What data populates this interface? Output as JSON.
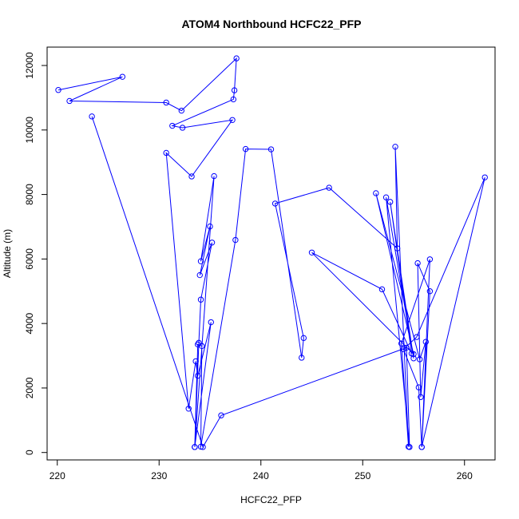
{
  "chart_data": {
    "type": "line",
    "title": "ATOM4 Northbound HCFC22_PFP",
    "xlabel": "HCFC22_PFP",
    "ylabel": "Altitude (m)",
    "xlim": [
      219,
      263
    ],
    "ylim": [
      -230,
      12570
    ],
    "xticks": [
      220,
      230,
      240,
      250,
      260
    ],
    "yticks": [
      0,
      2000,
      4000,
      6000,
      8000,
      10000,
      12000
    ],
    "grid": false,
    "series": [
      {
        "color": "#0000ff",
        "points": [
          [
            220.1,
            11240
          ],
          [
            226.4,
            11650
          ],
          [
            221.2,
            10900
          ],
          [
            230.7,
            10850
          ],
          [
            232.2,
            10600
          ],
          [
            237.6,
            12220
          ],
          [
            237.4,
            11230
          ],
          [
            237.3,
            10950
          ],
          [
            231.3,
            10130
          ],
          [
            232.3,
            10070
          ],
          [
            237.2,
            10310
          ],
          [
            233.2,
            8560
          ],
          [
            230.7,
            9290
          ],
          [
            232.9,
            1360
          ],
          [
            233.6,
            2830
          ],
          [
            233.8,
            2380
          ],
          [
            235.1,
            4040
          ],
          [
            233.5,
            170
          ],
          [
            233.9,
            3400
          ],
          [
            234.1,
            4740
          ],
          [
            235.2,
            6510
          ],
          [
            234.0,
            5500
          ],
          [
            235.0,
            7010
          ],
          [
            234.1,
            5930
          ],
          [
            235.4,
            8570
          ],
          [
            233.5,
            170
          ],
          [
            233.8,
            3350
          ],
          [
            234.2,
            3300
          ],
          [
            234.1,
            180
          ],
          [
            237.5,
            6590
          ],
          [
            238.5,
            9410
          ],
          [
            241.0,
            9400
          ],
          [
            244.0,
            2940
          ],
          [
            244.2,
            3550
          ],
          [
            241.4,
            7720
          ],
          [
            246.7,
            8210
          ],
          [
            253.4,
            6330
          ],
          [
            253.2,
            9480
          ],
          [
            254.5,
            180
          ],
          [
            253.8,
            3380
          ],
          [
            256.6,
            5990
          ],
          [
            255.8,
            170
          ],
          [
            262.0,
            8530
          ],
          [
            255.3,
            3580
          ],
          [
            254.0,
            3200
          ],
          [
            255.5,
            2020
          ],
          [
            255.8,
            170
          ],
          [
            256.6,
            5000
          ],
          [
            255.4,
            5870
          ],
          [
            255.7,
            1720
          ],
          [
            256.2,
            3430
          ],
          [
            255.6,
            2890
          ],
          [
            251.3,
            8040
          ],
          [
            255.0,
            3050
          ],
          [
            245.0,
            6200
          ],
          [
            251.9,
            5060
          ],
          [
            254.8,
            3070
          ],
          [
            252.7,
            7770
          ],
          [
            255.0,
            2920
          ],
          [
            252.3,
            7910
          ],
          [
            254.6,
            170
          ],
          [
            254.3,
            3250
          ],
          [
            236.1,
            1150
          ],
          [
            234.3,
            170
          ],
          [
            223.4,
            10420
          ]
        ]
      }
    ]
  }
}
